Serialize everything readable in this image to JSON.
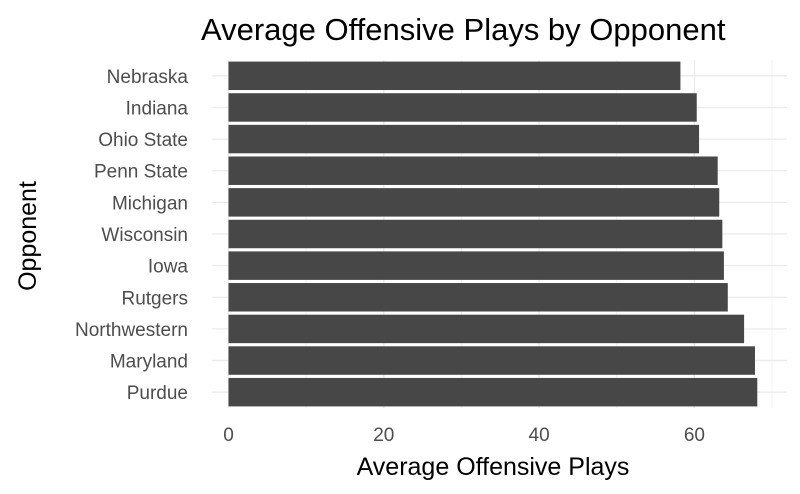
{
  "chart_data": {
    "type": "bar",
    "orientation": "horizontal",
    "title": "Average Offensive Plays by Opponent",
    "xlabel": "Average Offensive Plays",
    "ylabel": "Opponent",
    "categories": [
      "Nebraska",
      "Indiana",
      "Ohio State",
      "Penn State",
      "Michigan",
      "Wisconsin",
      "Iowa",
      "Rutgers",
      "Northwestern",
      "Maryland",
      "Purdue"
    ],
    "values": [
      58.2,
      60.3,
      60.6,
      63.0,
      63.2,
      63.6,
      63.8,
      64.3,
      66.4,
      67.8,
      68.1
    ],
    "xlim": [
      0,
      70
    ],
    "xticks": [
      0,
      20,
      40,
      60
    ],
    "bar_color": "#474747",
    "grid": true
  }
}
